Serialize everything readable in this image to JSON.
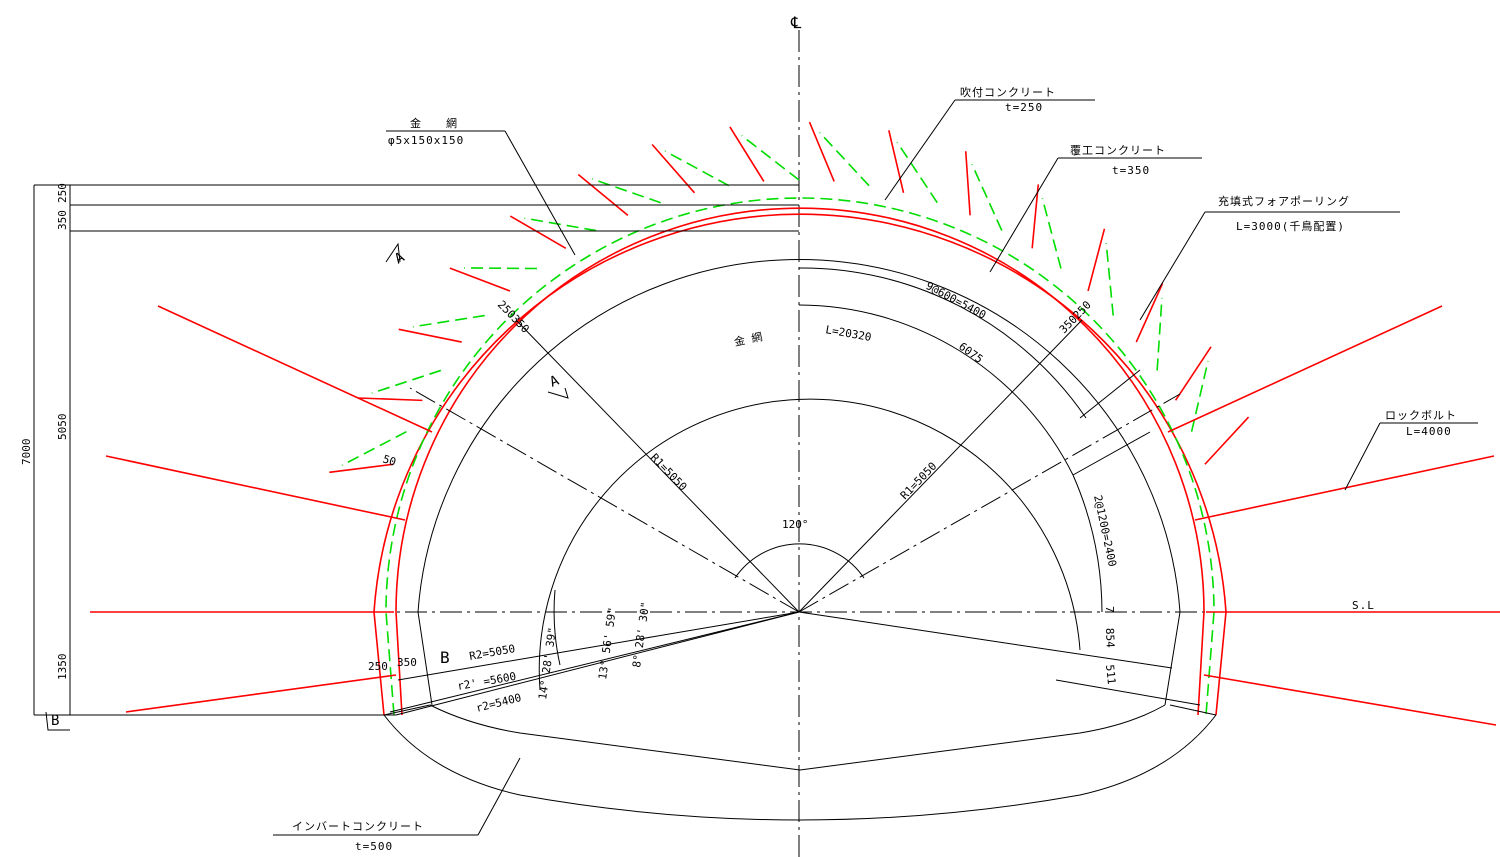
{
  "centerline_mark": "℄",
  "labels": {
    "shotcrete": {
      "name": "吹付コンクリート",
      "spec": "t=250"
    },
    "lining": {
      "name": "覆工コンクリート",
      "spec": "t=350"
    },
    "forepoling": {
      "name": "充填式フォアポーリング",
      "spec": "L=3000(千鳥配置)"
    },
    "rockbolt": {
      "name": "ロックボルト",
      "spec": "L=4000"
    },
    "wire_mesh": {
      "name": "金　　網",
      "spec": "φ5x150x150"
    },
    "invert": {
      "name": "インバートコンクリート",
      "spec": "t=500"
    },
    "spring_line": "S.L"
  },
  "dimensions": {
    "left_250": "250",
    "left_350": "350",
    "left_5050": "5050",
    "left_1350": "1350",
    "total_7000": "7000",
    "r1_left": "R1=5050",
    "r1_right": "R1=5050",
    "angle_120": "120°",
    "mesh_word": "金 網",
    "mesh_len": "L=20320",
    "arc_9at600": "9@600=5400",
    "arc_6075": "6075",
    "arc_2at1200": "2@1200=2400",
    "d7": "7",
    "d854": "854",
    "d511": "511",
    "r2": "R2=5050",
    "r2p": "r2' =5600",
    "r2b": "r2=5400",
    "ang1": "14° 28' 39\"",
    "ang2": "13° 56' 59\"",
    "ang3": "8° 28' 30\"",
    "thick_250_350_l": "250350",
    "thick_350_250_r": "350250",
    "bot_250": "250",
    "bot_350": "350",
    "d50": "50"
  },
  "section_marks": {
    "a": "A",
    "b": "B"
  },
  "colors": {
    "rockbolt": "#ff0000",
    "forepoling": "#00dd00",
    "lines": "#000000"
  }
}
